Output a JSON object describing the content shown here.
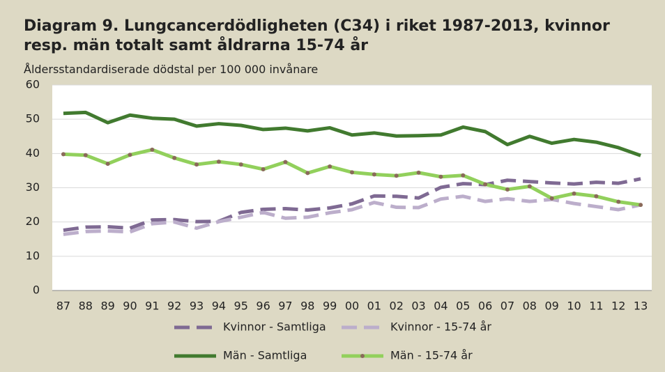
{
  "chart_data": {
    "type": "line",
    "title": "Diagram 9. Lungcancerdödligheten (C34) i riket 1987-2013, kvinnor resp. män totalt samt åldrarna 15-74 år",
    "subtitle": "Åldersstandardiserade dödstal per 100 000 invånare",
    "categories": [
      "87",
      "88",
      "89",
      "90",
      "91",
      "92",
      "93",
      "94",
      "95",
      "96",
      "97",
      "98",
      "99",
      "00",
      "01",
      "02",
      "03",
      "04",
      "05",
      "06",
      "07",
      "08",
      "09",
      "10",
      "11",
      "12",
      "13"
    ],
    "series": [
      {
        "name": "Kvinnor - Samtliga",
        "color": "#7f6a93",
        "line_style": "dashed",
        "values": [
          17.6,
          18.5,
          18.6,
          18.2,
          20.6,
          20.7,
          20.1,
          20.2,
          22.8,
          23.7,
          23.9,
          23.5,
          24.1,
          25.3,
          27.6,
          27.5,
          27.0,
          30.1,
          31.2,
          30.9,
          32.2,
          31.8,
          31.4,
          31.1,
          31.6,
          31.3,
          32.6
        ]
      },
      {
        "name": "Kvinnor - 15-74 år",
        "color": "#bcaecb",
        "line_style": "dashed",
        "values": [
          16.4,
          17.2,
          17.4,
          17.1,
          19.5,
          20.0,
          18.2,
          20.1,
          21.4,
          22.8,
          21.1,
          21.4,
          22.7,
          23.6,
          25.7,
          24.3,
          24.2,
          26.7,
          27.5,
          26.0,
          26.8,
          26.0,
          26.6,
          25.4,
          24.5,
          23.6,
          25.0
        ]
      },
      {
        "name": "Män - Samtliga",
        "color": "#417a2f",
        "line_style": "solid",
        "values": [
          51.7,
          52.0,
          49.0,
          51.2,
          50.3,
          50.0,
          48.0,
          48.7,
          48.2,
          47.0,
          47.4,
          46.6,
          47.5,
          45.4,
          46.0,
          45.1,
          45.2,
          45.4,
          47.7,
          46.4,
          42.6,
          45.0,
          43.0,
          44.1,
          43.3,
          41.7,
          39.4
        ]
      },
      {
        "name": "Män - 15-74 år",
        "color": "#92d05c",
        "line_style": "solid",
        "marker": true,
        "marker_color": "#8a6a5a",
        "values": [
          39.8,
          39.5,
          37.0,
          39.6,
          41.1,
          38.7,
          36.8,
          37.6,
          36.8,
          35.4,
          37.5,
          34.3,
          36.2,
          34.5,
          33.9,
          33.5,
          34.4,
          33.2,
          33.6,
          31.0,
          29.5,
          30.4,
          26.9,
          28.3,
          27.5,
          25.9,
          25.0
        ]
      }
    ],
    "ylim": [
      0,
      60
    ],
    "yticks": [
      0,
      10,
      20,
      30,
      40,
      50,
      60
    ],
    "grid": true
  }
}
